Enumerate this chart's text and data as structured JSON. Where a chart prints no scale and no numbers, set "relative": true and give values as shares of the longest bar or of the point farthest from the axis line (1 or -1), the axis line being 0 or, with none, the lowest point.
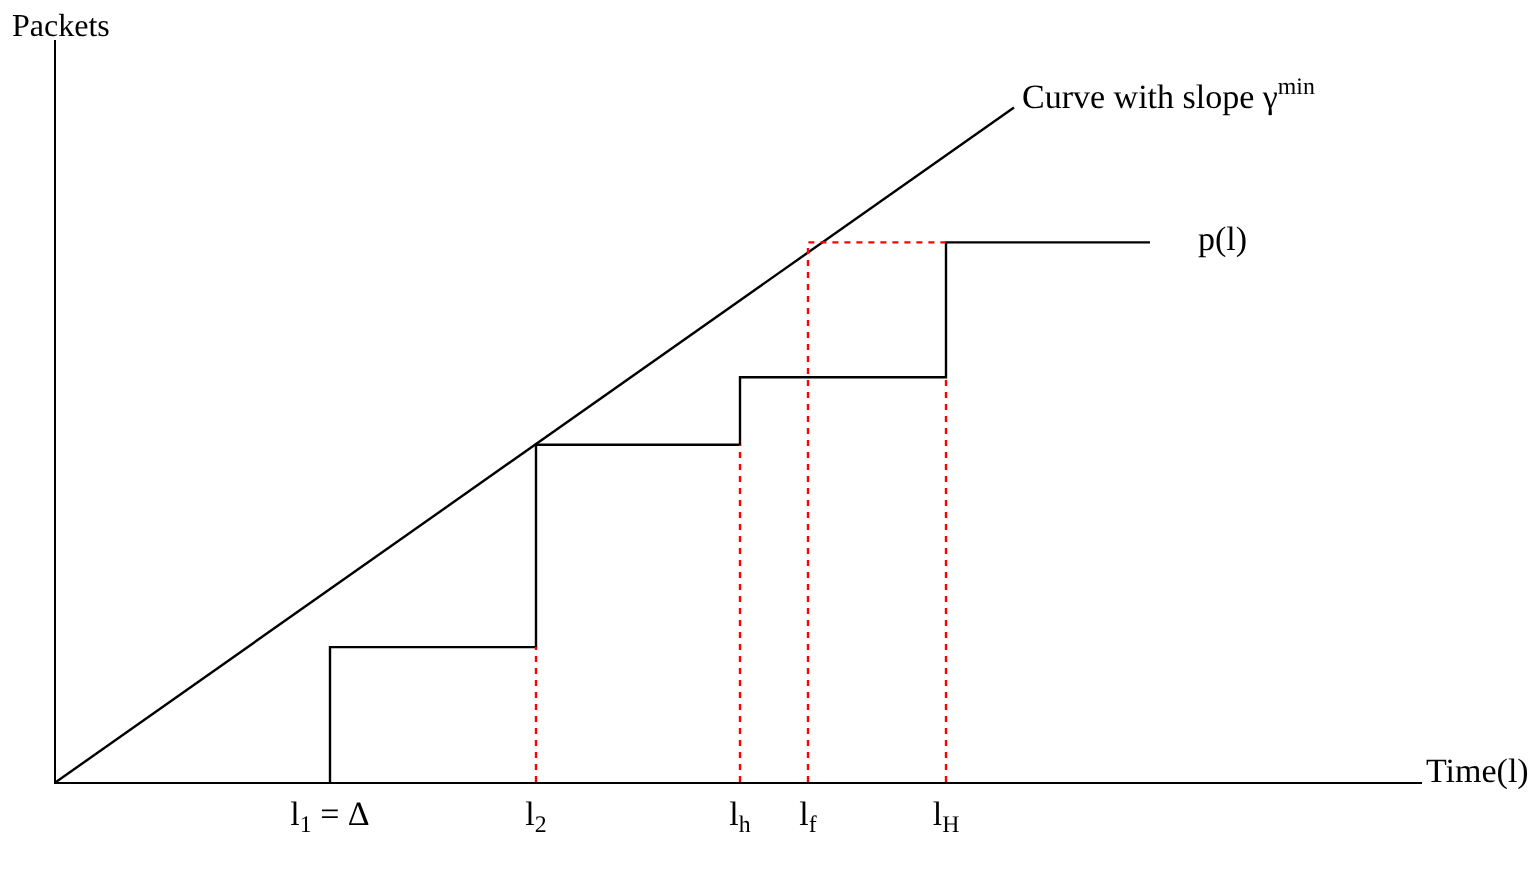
{
  "chart_data": {
    "type": "step",
    "relative": true,
    "xlabel": "Time(l)",
    "ylabel": "Packets",
    "xlim": [
      0,
      6.83
    ],
    "xticks": [
      {
        "value": 1.37,
        "label": "l$_{1}$ = Δ"
      },
      {
        "value": 2.4,
        "label": "l$_{2}$"
      },
      {
        "value": 3.42,
        "label": "l$_{h}$"
      },
      {
        "value": 3.76,
        "label": "l$_{f}$"
      },
      {
        "value": 4.45,
        "label": "l$_{H}$"
      }
    ],
    "series": [
      {
        "type": "line",
        "color": "#000000",
        "line_style": "solid",
        "x": [
          0,
          4.79
        ],
        "values": [
          0,
          1
        ]
      },
      {
        "color": "#000000",
        "line_style": "solid",
        "x": [
          1.37,
          1.37,
          2.4,
          3.42,
          4.45,
          5.47
        ],
        "values": [
          0,
          0.2,
          0.5,
          0.6,
          0.8,
          0.8
        ]
      },
      {
        "type": "line",
        "color": "#ff0000",
        "line_style": "dotted",
        "x": [
          2.4,
          2.4
        ],
        "values": [
          0,
          0.2
        ]
      },
      {
        "type": "line",
        "color": "#ff0000",
        "line_style": "dotted",
        "x": [
          3.42,
          3.42
        ],
        "values": [
          0,
          0.5
        ]
      },
      {
        "type": "line",
        "color": "#ff0000",
        "line_style": "dotted",
        "x": [
          3.76,
          3.76,
          4.45
        ],
        "values": [
          0,
          0.8,
          0.8
        ]
      },
      {
        "type": "line",
        "color": "#ff0000",
        "line_style": "dotted",
        "x": [
          4.45,
          4.45
        ],
        "values": [
          0,
          0.6
        ]
      }
    ],
    "annotations": [
      {
        "text": "Curve with slope γ$^{min}$",
        "x": 4.79,
        "y": 1
      },
      {
        "text": "p(l)",
        "x": 5.47,
        "y": 0.8
      }
    ],
    "marker": "none"
  }
}
